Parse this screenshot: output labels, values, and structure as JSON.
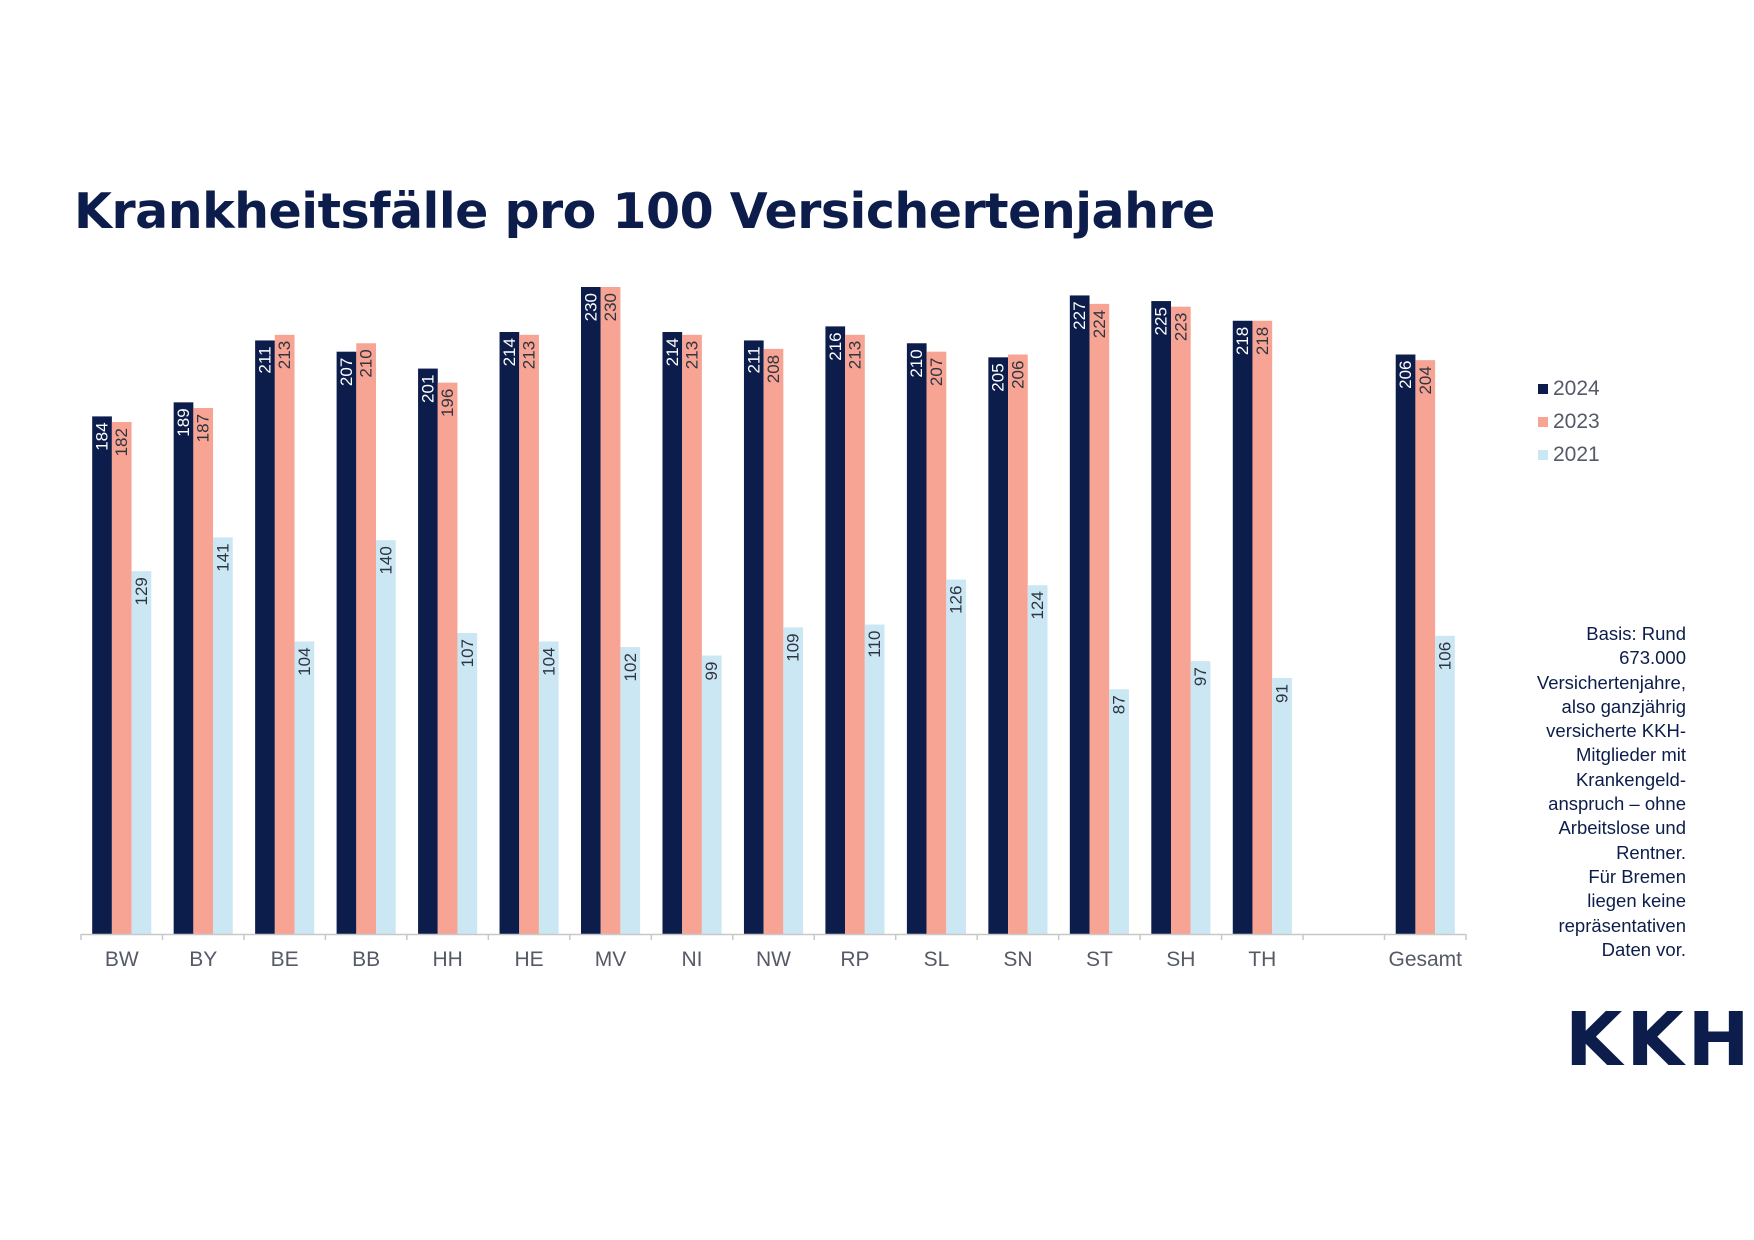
{
  "title": "Krankheitsfälle pro 100 Versichertenjahre",
  "note_lines": [
    "Basis: Rund",
    "673.000",
    "Versichertenjahre,",
    "also ganzjährig",
    "versicherte KKH-",
    "Mitglieder mit",
    "Krankengeld-",
    "anspruch – ohne",
    "Arbeitslose und",
    "Rentner.",
    "Für Bremen",
    "liegen keine",
    "repräsentativen",
    "Daten vor."
  ],
  "logo": "KKH",
  "colors": {
    "s2024": "#0d1d4b",
    "s2023": "#f7a494",
    "s2021": "#cbe7f3",
    "label_on_dark": "#ffffff",
    "label_on_light": "#2e3440",
    "axis": "#c8c8c8",
    "tick_text": "#555a66"
  },
  "chart_data": {
    "type": "bar",
    "title": "Krankheitsfälle pro 100 Versichertenjahre",
    "categories": [
      "BW",
      "BY",
      "BE",
      "BB",
      "HH",
      "HE",
      "MV",
      "NI",
      "NW",
      "RP",
      "SL",
      "SN",
      "ST",
      "SH",
      "TH",
      "",
      "Gesamt"
    ],
    "series": [
      {
        "name": "2024",
        "values": [
          184,
          189,
          211,
          207,
          201,
          214,
          230,
          214,
          211,
          216,
          210,
          205,
          227,
          225,
          218,
          null,
          206
        ]
      },
      {
        "name": "2023",
        "values": [
          182,
          187,
          213,
          210,
          196,
          213,
          230,
          213,
          208,
          213,
          207,
          206,
          224,
          223,
          218,
          null,
          204
        ]
      },
      {
        "name": "2021",
        "values": [
          129,
          141,
          104,
          140,
          107,
          104,
          102,
          99,
          109,
          110,
          126,
          124,
          87,
          97,
          91,
          null,
          106
        ]
      }
    ],
    "ylim": [
      0,
      230
    ],
    "xlabel": "",
    "ylabel": "",
    "grid": false,
    "legend": "right"
  }
}
